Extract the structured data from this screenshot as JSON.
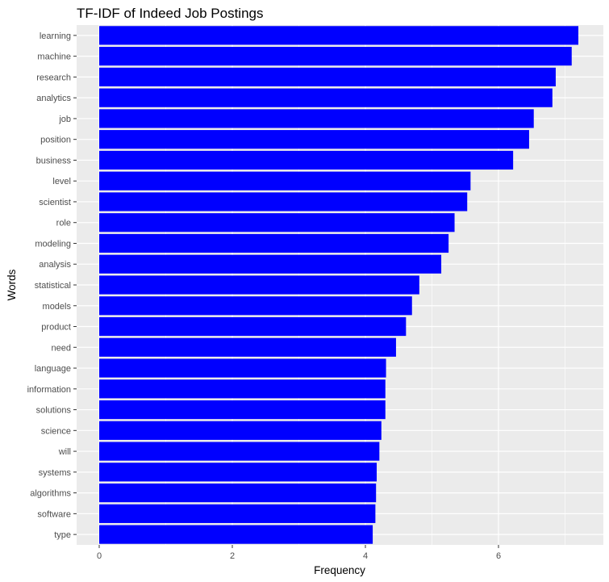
{
  "chart_data": {
    "type": "bar",
    "orientation": "horizontal",
    "title": "TF-IDF of Indeed Job Postings",
    "xlabel": "Frequency",
    "ylabel": "Words",
    "categories": [
      "learning",
      "machine",
      "research",
      "analytics",
      "job",
      "position",
      "business",
      "level",
      "scientist",
      "role",
      "modeling",
      "analysis",
      "statistical",
      "models",
      "product",
      "need",
      "language",
      "information",
      "solutions",
      "science",
      "will",
      "systems",
      "algorithms",
      "software",
      "type"
    ],
    "values": [
      7.2,
      7.1,
      6.86,
      6.81,
      6.53,
      6.46,
      6.22,
      5.58,
      5.53,
      5.34,
      5.25,
      5.14,
      4.81,
      4.7,
      4.61,
      4.46,
      4.31,
      4.3,
      4.3,
      4.24,
      4.21,
      4.17,
      4.16,
      4.15,
      4.11
    ],
    "xlim": [
      -0.35,
      7.4
    ],
    "xticks": [
      0,
      2,
      4,
      6
    ],
    "bar_color": "#0000ff",
    "panel_background": "#ebebeb",
    "grid_color": "#ffffff",
    "grid": true,
    "legend": "none"
  }
}
